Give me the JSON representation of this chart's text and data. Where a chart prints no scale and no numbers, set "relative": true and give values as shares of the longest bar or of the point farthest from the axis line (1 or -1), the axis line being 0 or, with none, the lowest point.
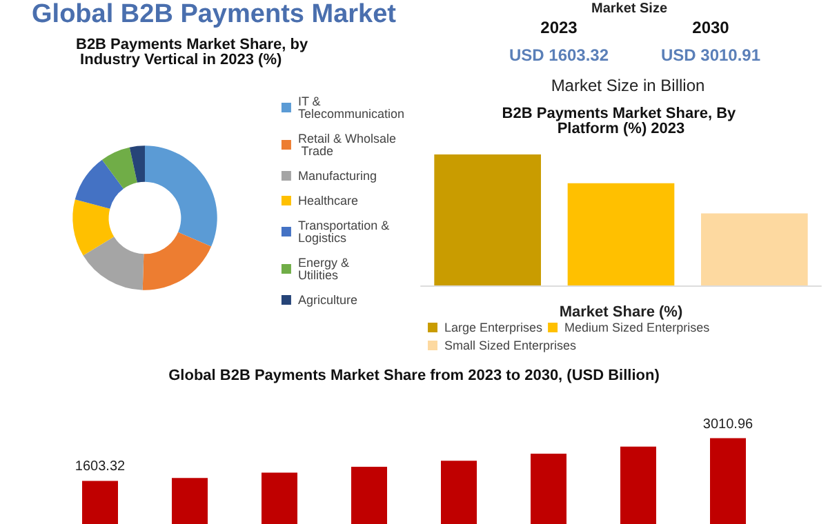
{
  "chart_data": [
    {
      "type": "other",
      "title": "Global B2B Payments Market",
      "subtitle": "Market Size",
      "annotations": [
        "2023",
        "2030",
        "USD 1603.32",
        "USD 3010.91",
        "Market Size in Billion"
      ]
    },
    {
      "type": "donut",
      "title": "B2B Payments Market Share, by Industry Vertical in 2023 (%)",
      "categories": [
        "IT & Telecommunication",
        "Retail & Wholsale Trade",
        "Manufacturing",
        "Healthcare",
        "Transportation & Logistics",
        "Energy & Utilities",
        "Agriculture"
      ],
      "values": [
        31.5,
        19,
        15.8,
        12.8,
        10.8,
        6.7,
        3.4
      ],
      "colors": [
        "#5b9bd5",
        "#ed7d31",
        "#a5a5a5",
        "#ffc000",
        "#4472c4",
        "#70ad47",
        "#264478"
      ],
      "legend": "right"
    },
    {
      "type": "bar",
      "title": "B2B Payments Market Share, By Platform (%) 2023",
      "xlabel": "Market Share (%)",
      "categories": [
        null,
        null,
        null
      ],
      "relative": true,
      "stacked": true,
      "legend": "bottom",
      "series": [
        {
          "name": "Large Enterprises",
          "color": "#c99c00",
          "values": [
            1,
            null,
            null
          ]
        },
        {
          "name": "Medium Sized Enterprises",
          "color": "#ffc000",
          "values": [
            null,
            0.78,
            null
          ]
        },
        {
          "name": "Small Sized Enterprises",
          "color": "#fdd9a0",
          "values": [
            null,
            null,
            0.55
          ]
        }
      ]
    },
    {
      "type": "bar",
      "title": "Global B2B Payments Market Share from 2023 to 2030, (USD Billion)",
      "categories": [
        null,
        null,
        null,
        null,
        null,
        null,
        null,
        null
      ],
      "values": [
        1603.32,
        1701,
        1876,
        2071,
        2266,
        2500,
        2735,
        3010.96
      ],
      "color": "#c00000",
      "value_labels": [
        "1603.32",
        null,
        null,
        null,
        null,
        null,
        null,
        "3010.96"
      ],
      "tick_labels": false
    }
  ]
}
